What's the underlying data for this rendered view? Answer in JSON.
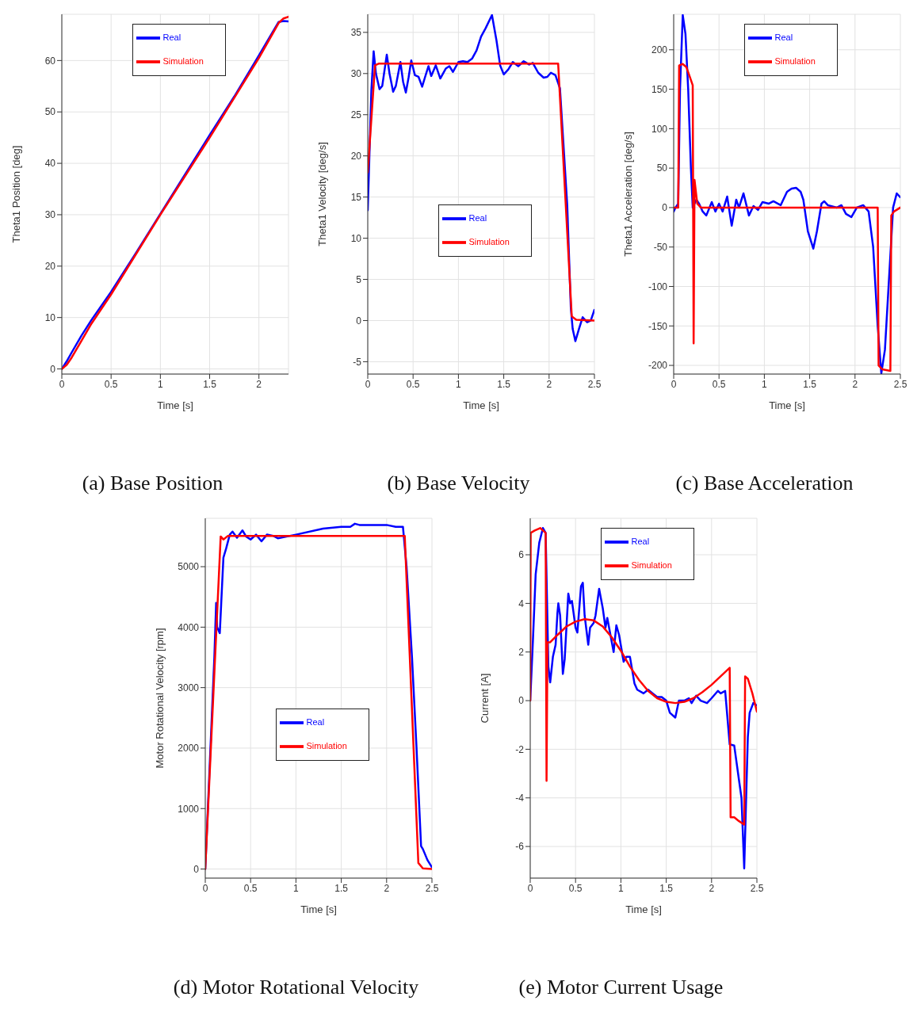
{
  "chart_data": [
    {
      "type": "line",
      "title": "(a) Base Position",
      "xlabel": "Time [s]",
      "ylabel": "Theta1 Position [deg]",
      "xlim": [
        0,
        2.3
      ],
      "xticks": [
        0,
        0.5,
        1,
        1.5,
        2
      ],
      "ylim": [
        -1,
        69
      ],
      "yticks": [
        0,
        10,
        20,
        30,
        40,
        50,
        60
      ],
      "grid": true,
      "legend": "top",
      "series": [
        {
          "name": "Real",
          "color": "#0000ff",
          "x": [
            0,
            0.05,
            0.1,
            0.2,
            0.3,
            0.5,
            0.75,
            1.5,
            1.75,
            2,
            2.2,
            2.25,
            2.3
          ],
          "values": [
            0,
            1.5,
            3.2,
            6.5,
            9.5,
            15,
            22.5,
            45.5,
            53,
            61,
            67.5,
            67.7,
            67.6
          ]
        },
        {
          "name": "Simulation",
          "color": "#ff0000",
          "x": [
            0,
            0.05,
            0.1,
            0.2,
            0.3,
            0.5,
            1,
            1.5,
            2,
            2.2,
            2.25,
            2.3
          ],
          "values": [
            0,
            0.8,
            2.2,
            5.5,
            8.8,
            14.5,
            30,
            45,
            60.5,
            67.3,
            68.2,
            68.5
          ]
        }
      ]
    },
    {
      "type": "line",
      "title": "(b) Base Velocity",
      "xlabel": "Time [s]",
      "ylabel": "Theta1 Velocity [deg/s]",
      "xlim": [
        0,
        2.5
      ],
      "xticks": [
        0,
        0.5,
        1,
        1.5,
        2,
        2.5
      ],
      "ylim": [
        -6.5,
        37.2
      ],
      "yticks": [
        -5,
        0,
        5,
        10,
        15,
        20,
        25,
        30,
        35
      ],
      "grid": true,
      "legend": "center",
      "series": [
        {
          "name": "Real",
          "color": "#0000ff",
          "x": [
            0,
            0.04,
            0.065,
            0.09,
            0.13,
            0.16,
            0.21,
            0.24,
            0.28,
            0.31,
            0.36,
            0.39,
            0.42,
            0.45,
            0.48,
            0.52,
            0.56,
            0.6,
            0.63,
            0.67,
            0.7,
            0.75,
            0.8,
            0.86,
            0.9,
            0.94,
            1.0,
            1.05,
            1.1,
            1.15,
            1.2,
            1.25,
            1.3,
            1.37,
            1.42,
            1.46,
            1.5,
            1.55,
            1.6,
            1.66,
            1.72,
            1.78,
            1.82,
            1.88,
            1.94,
            1.98,
            2.02,
            2.07,
            2.12,
            2.2,
            2.24,
            2.26,
            2.29,
            2.33,
            2.37,
            2.42,
            2.46,
            2.5
          ],
          "values": [
            13.4,
            28,
            32.7,
            30,
            28.1,
            28.5,
            32.3,
            30,
            27.8,
            28.5,
            31.4,
            29,
            27.7,
            29.5,
            31.6,
            29.8,
            29.6,
            28.4,
            29.5,
            30.9,
            29.7,
            31,
            29.4,
            30.6,
            30.9,
            30.2,
            31.4,
            31.5,
            31.4,
            31.8,
            32.8,
            34.5,
            35.5,
            37.1,
            34,
            31,
            29.9,
            30.5,
            31.4,
            30.9,
            31.5,
            31.1,
            31.3,
            30.1,
            29.5,
            29.6,
            30.1,
            29.8,
            28.2,
            14,
            1.5,
            -1,
            -2.5,
            -1,
            0.4,
            -0.2,
            0,
            1.3
          ]
        },
        {
          "name": "Simulation",
          "color": "#ff0000",
          "x": [
            0,
            0.08,
            0.12,
            2.1,
            2.25,
            2.3,
            2.5
          ],
          "values": [
            18,
            31,
            31.2,
            31.2,
            0.5,
            0.1,
            0
          ]
        }
      ]
    },
    {
      "type": "line",
      "title": "(c) Base Acceleration",
      "xlabel": "Time [s]",
      "ylabel": "Theta1 Acceleration [deg/s]",
      "xlim": [
        0,
        2.5
      ],
      "xticks": [
        0,
        0.5,
        1,
        1.5,
        2,
        2.5
      ],
      "ylim": [
        -211,
        245
      ],
      "yticks": [
        -200,
        -150,
        -100,
        -50,
        0,
        50,
        100,
        150,
        200
      ],
      "grid": true,
      "legend": "top",
      "series": [
        {
          "name": "Real",
          "color": "#0000ff",
          "x": [
            0,
            0.02,
            0.05,
            0.07,
            0.1,
            0.13,
            0.16,
            0.19,
            0.21,
            0.25,
            0.28,
            0.32,
            0.36,
            0.42,
            0.46,
            0.5,
            0.54,
            0.59,
            0.64,
            0.69,
            0.72,
            0.77,
            0.83,
            0.88,
            0.93,
            0.98,
            1.05,
            1.1,
            1.18,
            1.25,
            1.3,
            1.35,
            1.4,
            1.43,
            1.48,
            1.54,
            1.58,
            1.63,
            1.66,
            1.7,
            1.8,
            1.85,
            1.9,
            1.96,
            2.02,
            2.09,
            2.15,
            2.2,
            2.25,
            2.29,
            2.33,
            2.38,
            2.42,
            2.46,
            2.5
          ],
          "values": [
            -5,
            0,
            5,
            150,
            244,
            220,
            150,
            50,
            0,
            10,
            5,
            -5,
            -10,
            7,
            -5,
            5,
            -5,
            14,
            -23,
            10,
            0,
            18,
            -10,
            2,
            -3,
            7,
            5,
            8,
            3,
            20,
            24,
            25,
            20,
            10,
            -30,
            -52,
            -30,
            5,
            8,
            3,
            0,
            3,
            -8,
            -12,
            0,
            3,
            -5,
            -50,
            -150,
            -210,
            -180,
            -80,
            0,
            18,
            13
          ]
        },
        {
          "name": "Simulation",
          "color": "#ff0000",
          "x": [
            0,
            0.05,
            0.06,
            0.1,
            0.14,
            0.18,
            0.21,
            0.22,
            0.23,
            0.26,
            0.3,
            2.25,
            2.26,
            2.3,
            2.39,
            2.4,
            2.43,
            2.5
          ],
          "values": [
            0,
            0,
            180,
            182,
            178,
            165,
            155,
            -172,
            35,
            5,
            0,
            0,
            -200,
            -205,
            -207,
            -10,
            -5,
            0
          ]
        }
      ]
    },
    {
      "type": "line",
      "title": "(d) Motor Rotational Velocity",
      "xlabel": "Time [s]",
      "ylabel": "Motor Rotational Velocity [rpm]",
      "xlim": [
        0,
        2.5
      ],
      "xticks": [
        0,
        0.5,
        1,
        1.5,
        2,
        2.5
      ],
      "ylim": [
        -150,
        5800
      ],
      "yticks": [
        0,
        1000,
        2000,
        3000,
        4000,
        5000
      ],
      "grid": true,
      "legend": "center",
      "series": [
        {
          "name": "Real",
          "color": "#0000ff",
          "x": [
            0,
            0.1,
            0.12,
            0.13,
            0.16,
            0.2,
            0.23,
            0.27,
            0.3,
            0.35,
            0.41,
            0.45,
            0.5,
            0.56,
            0.62,
            0.68,
            0.75,
            0.8,
            1.0,
            1.3,
            1.5,
            1.6,
            1.65,
            1.7,
            2.0,
            2.1,
            2.18,
            2.22,
            2.28,
            2.33,
            2.38,
            2.4,
            2.45,
            2.5
          ],
          "values": [
            0,
            3500,
            4400,
            4000,
            3900,
            5150,
            5300,
            5530,
            5580,
            5480,
            5600,
            5500,
            5450,
            5530,
            5420,
            5530,
            5510,
            5470,
            5530,
            5630,
            5660,
            5660,
            5710,
            5690,
            5690,
            5660,
            5660,
            5000,
            3500,
            2000,
            380,
            330,
            150,
            30
          ]
        },
        {
          "name": "Simulation",
          "color": "#ff0000",
          "x": [
            0,
            0.17,
            0.2,
            0.25,
            2.2,
            2.35,
            2.4,
            2.5
          ],
          "values": [
            0,
            5500,
            5450,
            5510,
            5510,
            100,
            10,
            0
          ]
        }
      ]
    },
    {
      "type": "line",
      "title": "(e) Motor Current Usage",
      "xlabel": "Time [s]",
      "ylabel": "Current [A]",
      "xlim": [
        0,
        2.5
      ],
      "xticks": [
        0,
        0.5,
        1,
        1.5,
        2,
        2.5
      ],
      "ylim": [
        -7.3,
        7.5
      ],
      "yticks": [
        -6,
        -4,
        -2,
        0,
        2,
        4,
        6
      ],
      "grid": true,
      "legend": "top",
      "series": [
        {
          "name": "Real",
          "color": "#0000ff",
          "x": [
            0,
            0.03,
            0.06,
            0.1,
            0.14,
            0.17,
            0.2,
            0.22,
            0.25,
            0.28,
            0.3,
            0.31,
            0.33,
            0.36,
            0.38,
            0.42,
            0.44,
            0.46,
            0.5,
            0.52,
            0.56,
            0.58,
            0.6,
            0.64,
            0.66,
            0.7,
            0.72,
            0.76,
            0.8,
            0.83,
            0.85,
            0.88,
            0.92,
            0.95,
            0.98,
            1.03,
            1.06,
            1.1,
            1.15,
            1.18,
            1.25,
            1.3,
            1.35,
            1.4,
            1.45,
            1.5,
            1.54,
            1.6,
            1.64,
            1.7,
            1.75,
            1.78,
            1.83,
            1.88,
            1.95,
            2.0,
            2.07,
            2.1,
            2.15,
            2.2,
            2.25,
            2.3,
            2.33,
            2.36,
            2.4,
            2.42,
            2.46,
            2.5
          ],
          "values": [
            0,
            2.5,
            5.2,
            6.5,
            7.1,
            6.9,
            1.4,
            0.75,
            1.8,
            2.3,
            3.6,
            4,
            3.5,
            1.1,
            1.7,
            4.4,
            4,
            4.1,
            3,
            2.8,
            4.7,
            4.85,
            3.5,
            2.3,
            3,
            3.2,
            3.5,
            4.6,
            3.8,
            3,
            3.4,
            2.8,
            2,
            3.1,
            2.7,
            1.6,
            1.8,
            1.8,
            0.7,
            0.45,
            0.3,
            0.45,
            0.3,
            0.15,
            0.15,
            0,
            -0.5,
            -0.7,
            0,
            0,
            0.1,
            -0.1,
            0.2,
            0,
            -0.1,
            0.1,
            0.4,
            0.3,
            0.4,
            -1.8,
            -1.85,
            -3.2,
            -4,
            -6.9,
            -1.5,
            -0.5,
            -0.1,
            -0.2
          ]
        },
        {
          "name": "Simulation",
          "color": "#ff0000",
          "x": [
            0,
            0.005,
            0.05,
            0.11,
            0.17,
            0.18,
            0.19,
            0.22,
            0.3,
            0.4,
            0.5,
            0.6,
            0.7,
            0.8,
            0.9,
            1.0,
            1.1,
            1.2,
            1.3,
            1.4,
            1.5,
            1.6,
            1.7,
            1.8,
            1.9,
            2.0,
            2.1,
            2.2,
            2.21,
            2.25,
            2.3,
            2.36,
            2.37,
            2.4,
            2.45,
            2.5
          ],
          "values": [
            0,
            6.9,
            7.0,
            7.1,
            6.9,
            -3.3,
            2.4,
            2.4,
            2.7,
            3.05,
            3.25,
            3.35,
            3.3,
            3.05,
            2.6,
            2.05,
            1.4,
            0.85,
            0.4,
            0.1,
            -0.05,
            -0.1,
            -0.05,
            0.1,
            0.35,
            0.65,
            1,
            1.35,
            -4.8,
            -4.8,
            -4.95,
            -5.1,
            1.0,
            0.9,
            0.3,
            -0.45
          ]
        }
      ]
    }
  ]
}
